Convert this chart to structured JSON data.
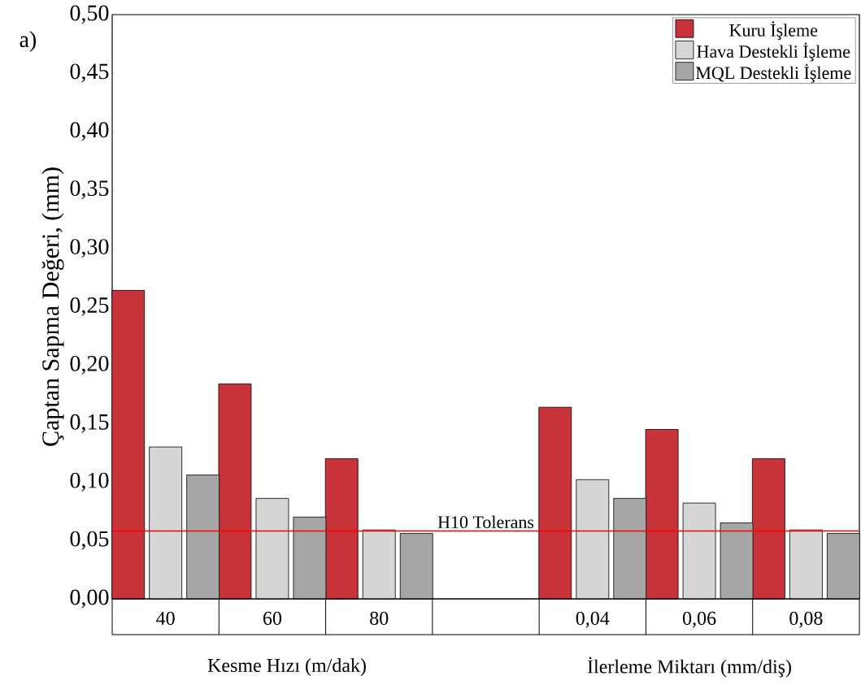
{
  "chart_data": {
    "type": "bar",
    "ylabel": "Çaptan Sapma Değeri, (mm)",
    "categories": [
      "40",
      "60",
      "80",
      null,
      "0,04",
      "0,06",
      "0,08"
    ],
    "series": [
      {
        "name": "Kuru İşleme",
        "color": "#c8333a",
        "values": [
          0.264,
          0.184,
          0.12,
          null,
          0.164,
          0.145,
          0.12
        ]
      },
      {
        "name": "Hava Destekli İşleme",
        "color": "#d6d6d6",
        "values": [
          0.13,
          0.086,
          0.059,
          null,
          0.102,
          0.082,
          0.059
        ]
      },
      {
        "name": "MQL Destekli İşleme",
        "color": "#a6a6a6",
        "values": [
          0.106,
          0.07,
          0.056,
          null,
          0.086,
          0.065,
          0.056
        ]
      }
    ],
    "ylim": [
      0,
      0.5
    ],
    "yticks": [
      {
        "value": 0,
        "label": "0,00"
      },
      {
        "value": 0.05,
        "label": "0,05"
      },
      {
        "value": 0.1,
        "label": "0,10"
      },
      {
        "value": 0.15,
        "label": "0,15"
      },
      {
        "value": 0.2,
        "label": "0,20"
      },
      {
        "value": 0.25,
        "label": "0,25"
      },
      {
        "value": 0.3,
        "label": "0,30"
      },
      {
        "value": 0.35,
        "label": "0,35"
      },
      {
        "value": 0.4,
        "label": "0,40"
      },
      {
        "value": 0.45,
        "label": "0,45"
      },
      {
        "value": 0.5,
        "label": "0,50"
      }
    ],
    "ref_lines": [
      {
        "axis": "y",
        "value": 0.058,
        "label": "H10 Tolerans",
        "color": "#ff0000"
      }
    ],
    "annotations": [
      "a)",
      "Kesme Hızı (m/dak)",
      "İlerleme Miktarı (mm/diş)"
    ],
    "legend": "top right",
    "grid": false
  }
}
